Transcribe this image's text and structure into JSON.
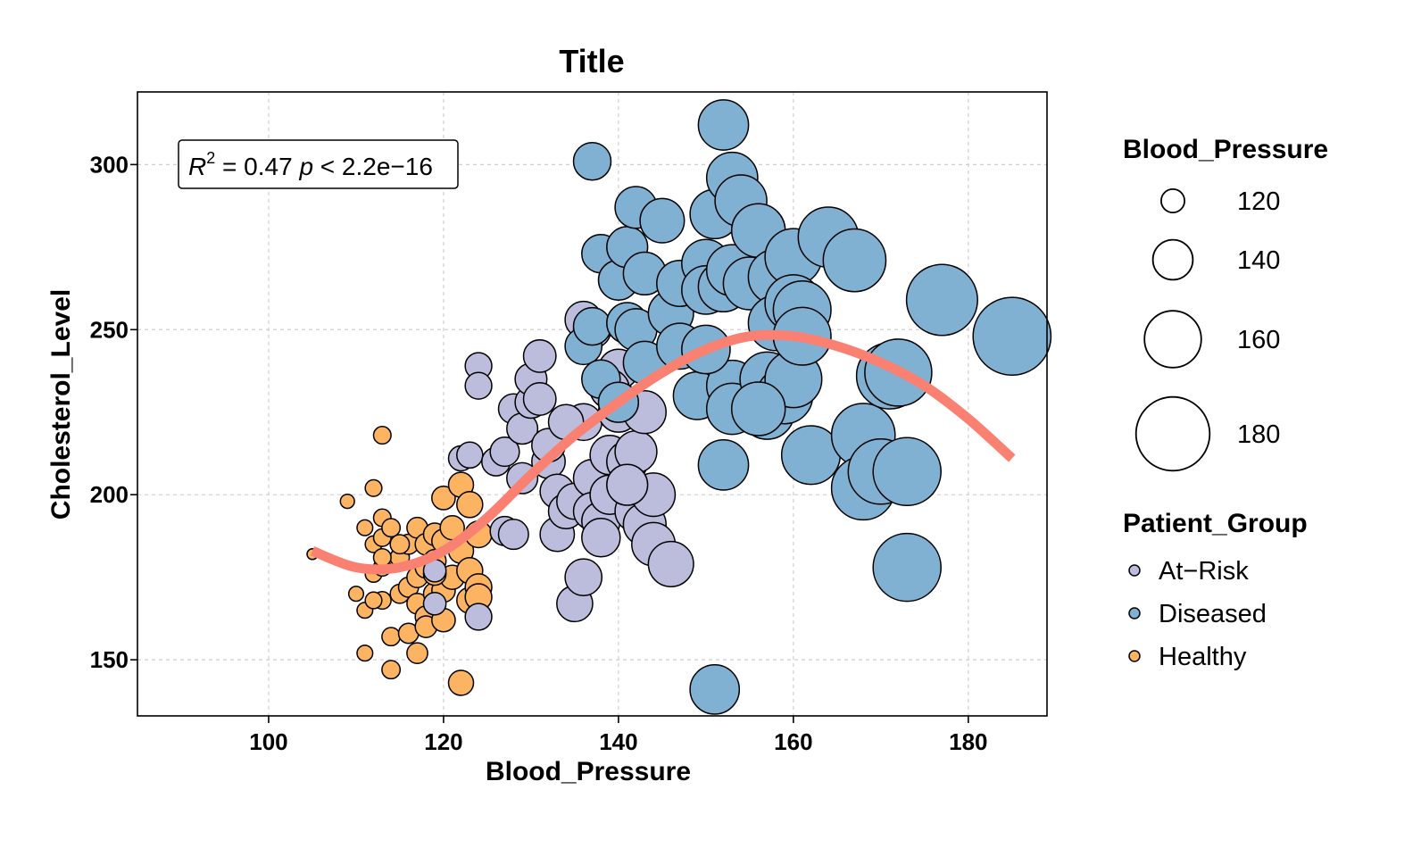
{
  "chart_data": {
    "type": "scatter",
    "title": "Title",
    "xlabel": "Blood_Pressure",
    "ylabel": "Cholesterol_Level",
    "xlim": [
      85,
      189
    ],
    "ylim": [
      133,
      322
    ],
    "x_ticks": [
      100,
      120,
      140,
      160,
      180
    ],
    "y_ticks": [
      150,
      200,
      250,
      300
    ],
    "grid": true,
    "annotation": {
      "r_label": "R",
      "r_sup": "2",
      "r_rest": " = 0.47 ",
      "p_label": "p",
      "p_rest": " < 2.2e−16"
    },
    "size_legend": {
      "title": "Blood_Pressure",
      "values": [
        120,
        140,
        160,
        180
      ]
    },
    "color_legend": {
      "title": "Patient_Group",
      "entries": [
        {
          "name": "At−Risk",
          "color": "#bcbddc"
        },
        {
          "name": "Diseased",
          "color": "#80b1d3"
        },
        {
          "name": "Healthy",
          "color": "#fdb462"
        }
      ]
    },
    "trend_color": "#fa8072",
    "trend": [
      [
        105,
        183
      ],
      [
        110,
        178
      ],
      [
        115,
        178
      ],
      [
        120,
        183
      ],
      [
        125,
        193
      ],
      [
        130,
        206
      ],
      [
        135,
        218
      ],
      [
        140,
        228
      ],
      [
        145,
        237
      ],
      [
        150,
        244
      ],
      [
        155,
        248
      ],
      [
        160,
        248
      ],
      [
        165,
        245
      ],
      [
        170,
        240
      ],
      [
        175,
        233
      ],
      [
        180,
        223
      ],
      [
        185,
        211
      ]
    ],
    "series": [
      {
        "name": "Healthy",
        "color": "#fdb462",
        "points": [
          [
            105,
            182
          ],
          [
            109,
            198
          ],
          [
            110,
            170
          ],
          [
            111,
            165
          ],
          [
            111,
            190
          ],
          [
            111,
            152
          ],
          [
            112,
            202
          ],
          [
            112,
            185
          ],
          [
            112,
            176
          ],
          [
            113,
            218
          ],
          [
            113,
            193
          ],
          [
            113,
            187
          ],
          [
            113,
            178
          ],
          [
            113,
            168
          ],
          [
            114,
            157
          ],
          [
            114,
            147
          ],
          [
            114,
            190
          ],
          [
            115,
            181
          ],
          [
            115,
            170
          ],
          [
            116,
            158
          ],
          [
            116,
            172
          ],
          [
            116,
            185
          ],
          [
            117,
            190
          ],
          [
            117,
            175
          ],
          [
            117,
            167
          ],
          [
            117,
            152
          ],
          [
            118,
            163
          ],
          [
            118,
            178
          ],
          [
            118,
            185
          ],
          [
            118,
            160
          ],
          [
            119,
            180
          ],
          [
            119,
            170
          ],
          [
            119,
            188
          ],
          [
            120,
            199
          ],
          [
            120,
            186
          ],
          [
            120,
            171
          ],
          [
            120,
            162
          ],
          [
            121,
            175
          ],
          [
            121,
            190
          ],
          [
            122,
            183
          ],
          [
            122,
            143
          ],
          [
            122,
            203
          ],
          [
            123,
            197
          ],
          [
            123,
            177
          ],
          [
            123,
            168
          ],
          [
            124,
            172
          ],
          [
            124,
            188
          ],
          [
            124,
            169
          ],
          [
            113,
            181
          ],
          [
            115,
            185
          ],
          [
            112,
            168
          ],
          [
            119,
            176
          ]
        ]
      },
      {
        "name": "At−Risk",
        "color": "#bcbddc",
        "points": [
          [
            119,
            177
          ],
          [
            119,
            167
          ],
          [
            122,
            211
          ],
          [
            123,
            212
          ],
          [
            124,
            239
          ],
          [
            124,
            233
          ],
          [
            124,
            163
          ],
          [
            126,
            210
          ],
          [
            127,
            213
          ],
          [
            127,
            189
          ],
          [
            128,
            188
          ],
          [
            128,
            226
          ],
          [
            129,
            220
          ],
          [
            129,
            205
          ],
          [
            130,
            228
          ],
          [
            130,
            235
          ],
          [
            131,
            242
          ],
          [
            131,
            229
          ],
          [
            132,
            210
          ],
          [
            133,
            201
          ],
          [
            133,
            188
          ],
          [
            134,
            195
          ],
          [
            135,
            167
          ],
          [
            135,
            198
          ],
          [
            136,
            175
          ],
          [
            136,
            253
          ],
          [
            136,
            222
          ],
          [
            137,
            250
          ],
          [
            137,
            205
          ],
          [
            137,
            195
          ],
          [
            138,
            192
          ],
          [
            138,
            187
          ],
          [
            139,
            212
          ],
          [
            139,
            200
          ],
          [
            140,
            225
          ],
          [
            140,
            238
          ],
          [
            141,
            210
          ],
          [
            142,
            213
          ],
          [
            142,
            195
          ],
          [
            143,
            225
          ],
          [
            143,
            191
          ],
          [
            144,
            200
          ],
          [
            144,
            185
          ],
          [
            146,
            179
          ],
          [
            132,
            215
          ],
          [
            134,
            222
          ],
          [
            139,
            232
          ],
          [
            141,
            203
          ]
        ]
      },
      {
        "name": "Diseased",
        "color": "#80b1d3",
        "points": [
          [
            136,
            245
          ],
          [
            137,
            251
          ],
          [
            137,
            301
          ],
          [
            138,
            273
          ],
          [
            138,
            235
          ],
          [
            140,
            228
          ],
          [
            140,
            265
          ],
          [
            141,
            275
          ],
          [
            141,
            252
          ],
          [
            142,
            287
          ],
          [
            142,
            250
          ],
          [
            143,
            267
          ],
          [
            143,
            240
          ],
          [
            145,
            283
          ],
          [
            146,
            255
          ],
          [
            147,
            264
          ],
          [
            147,
            245
          ],
          [
            149,
            230
          ],
          [
            150,
            270
          ],
          [
            150,
            262
          ],
          [
            151,
            285
          ],
          [
            151,
            141
          ],
          [
            152,
            312
          ],
          [
            152,
            263
          ],
          [
            152,
            209
          ],
          [
            153,
            268
          ],
          [
            153,
            296
          ],
          [
            153,
            233
          ],
          [
            153,
            226
          ],
          [
            154,
            289
          ],
          [
            155,
            264
          ],
          [
            156,
            280
          ],
          [
            157,
            235
          ],
          [
            157,
            225
          ],
          [
            158,
            266
          ],
          [
            158,
            252
          ],
          [
            159,
            230
          ],
          [
            160,
            272
          ],
          [
            160,
            258
          ],
          [
            160,
            235
          ],
          [
            161,
            256
          ],
          [
            161,
            248
          ],
          [
            162,
            212
          ],
          [
            164,
            278
          ],
          [
            167,
            271
          ],
          [
            168,
            218
          ],
          [
            168,
            202
          ],
          [
            170,
            207
          ],
          [
            171,
            236
          ],
          [
            172,
            237
          ],
          [
            173,
            207
          ],
          [
            173,
            178
          ],
          [
            177,
            259
          ],
          [
            185,
            248
          ],
          [
            150,
            244
          ],
          [
            156,
            226
          ]
        ]
      }
    ]
  }
}
